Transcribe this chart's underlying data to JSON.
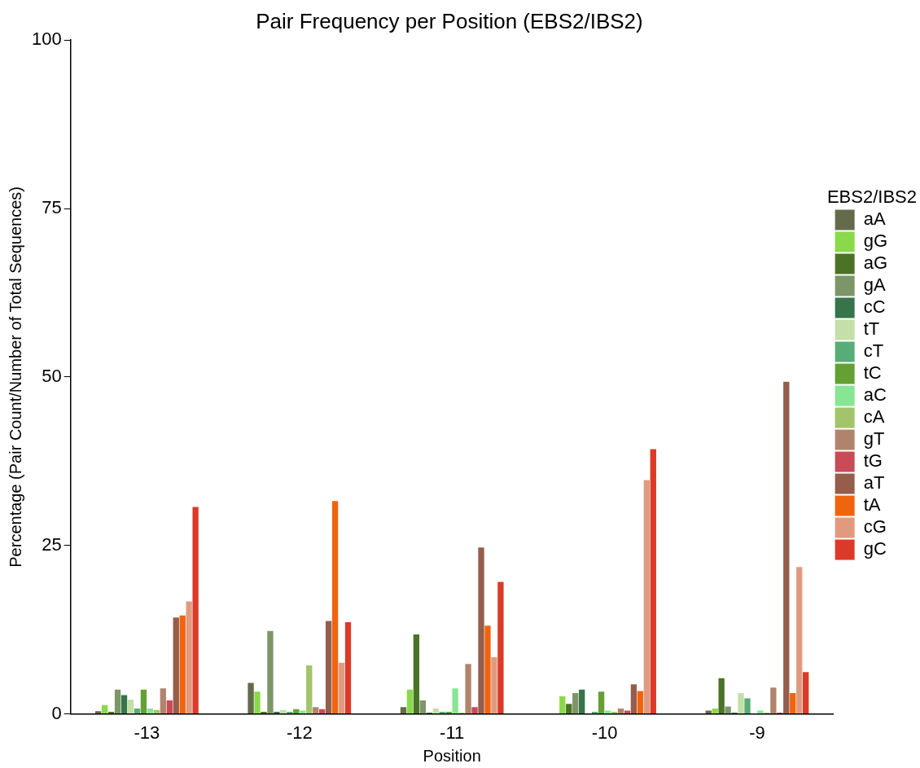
{
  "chart_data": {
    "type": "bar",
    "title": "Pair Frequency per Position (EBS2/IBS2)",
    "xlabel": "Position",
    "ylabel": "Percentage (Pair Count/Number of Total Sequences)",
    "legend_title": "EBS2/IBS2",
    "categories": [
      "-13",
      "-12",
      "-11",
      "-10",
      "-9"
    ],
    "series": [
      {
        "name": "aA",
        "color": "#636b4a",
        "values": [
          0.4,
          4.6,
          1.0,
          0,
          0.5
        ]
      },
      {
        "name": "gG",
        "color": "#8ad94a",
        "values": [
          1.3,
          3.3,
          3.6,
          2.6,
          0.8
        ]
      },
      {
        "name": "aG",
        "color": "#4b7327",
        "values": [
          0.3,
          0.3,
          11.8,
          1.5,
          5.3
        ]
      },
      {
        "name": "gA",
        "color": "#7d9669",
        "values": [
          3.6,
          12.3,
          2.0,
          3.1,
          1.1
        ]
      },
      {
        "name": "cC",
        "color": "#36744a",
        "values": [
          2.8,
          0.3,
          0.2,
          3.6,
          0.2
        ]
      },
      {
        "name": "tT",
        "color": "#c4dfa7",
        "values": [
          2.1,
          0.6,
          0.8,
          0,
          3.1
        ]
      },
      {
        "name": "cT",
        "color": "#57ad76",
        "values": [
          0.8,
          0.3,
          0.3,
          0.3,
          2.3
        ]
      },
      {
        "name": "tC",
        "color": "#64a033",
        "values": [
          3.6,
          0.7,
          0.3,
          3.3,
          0
        ]
      },
      {
        "name": "aC",
        "color": "#86e693",
        "values": [
          0.8,
          0.5,
          3.8,
          0.5,
          0.5
        ]
      },
      {
        "name": "cA",
        "color": "#a2c46b",
        "values": [
          0.6,
          7.2,
          0.2,
          0.3,
          0.2
        ]
      },
      {
        "name": "gT",
        "color": "#b0846c",
        "values": [
          3.8,
          1.0,
          7.4,
          0.8,
          3.9
        ]
      },
      {
        "name": "tG",
        "color": "#c94b58",
        "values": [
          2.0,
          0.7,
          1.0,
          0.5,
          0.2
        ]
      },
      {
        "name": "aT",
        "color": "#955d4b",
        "values": [
          14.3,
          13.8,
          24.7,
          4.4,
          49.3
        ]
      },
      {
        "name": "tA",
        "color": "#f0640f",
        "values": [
          14.6,
          31.6,
          13.1,
          3.4,
          3.1
        ]
      },
      {
        "name": "cG",
        "color": "#e19a80",
        "values": [
          16.7,
          7.6,
          8.4,
          34.7,
          21.8
        ]
      },
      {
        "name": "gC",
        "color": "#dc3a29",
        "values": [
          30.7,
          13.6,
          19.6,
          39.3,
          6.2
        ]
      }
    ],
    "ylim": [
      0,
      100
    ],
    "yticks": [
      0,
      25,
      50,
      75,
      100
    ],
    "grid": false,
    "legend": "right"
  }
}
